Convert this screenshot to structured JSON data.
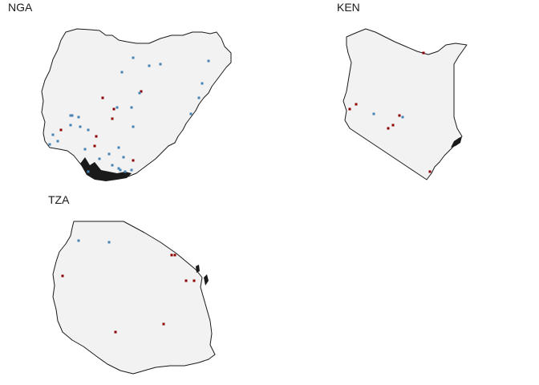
{
  "colors": {
    "land": "#f2f2f2",
    "border": "#1a1a1a",
    "marker_blue": "#4682b4",
    "marker_red": "#8b0000",
    "background": "#ffffff"
  },
  "panels": [
    {
      "id": "nga",
      "title": "NGA"
    },
    {
      "id": "ken",
      "title": "KEN"
    },
    {
      "id": "tza",
      "title": "TZA"
    }
  ]
}
